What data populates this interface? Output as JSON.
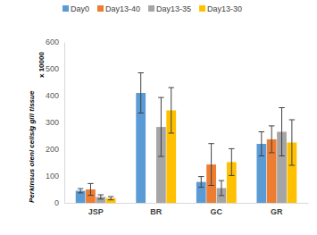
{
  "chart_data": {
    "type": "bar",
    "y_label": "Perkinsus oleni cells/g gill tissue",
    "annotations": [
      "x 10000"
    ],
    "categories": [
      "JSP",
      "BR",
      "GC",
      "GR"
    ],
    "series": [
      {
        "name": "Day0",
        "color": "#5b9bd5",
        "values": [
          45,
          410,
          78,
          220
        ],
        "errors": [
          8,
          75,
          20,
          45
        ]
      },
      {
        "name": "Day13-40",
        "color": "#ed7d31",
        "values": [
          50,
          null,
          143,
          237
        ],
        "errors": [
          22,
          null,
          78,
          50
        ]
      },
      {
        "name": "Day13-35",
        "color": "#a5a5a5",
        "values": [
          22,
          283,
          55,
          265
        ],
        "errors": [
          8,
          110,
          28,
          90
        ]
      },
      {
        "name": "Day13-30",
        "color": "#ffc000",
        "values": [
          17,
          345,
          152,
          225
        ],
        "errors": [
          6,
          85,
          50,
          85
        ]
      }
    ],
    "ylim": [
      0,
      600
    ],
    "yticks": [
      0,
      100,
      200,
      300,
      400,
      500,
      600
    ],
    "grid": false,
    "legend": "top"
  }
}
